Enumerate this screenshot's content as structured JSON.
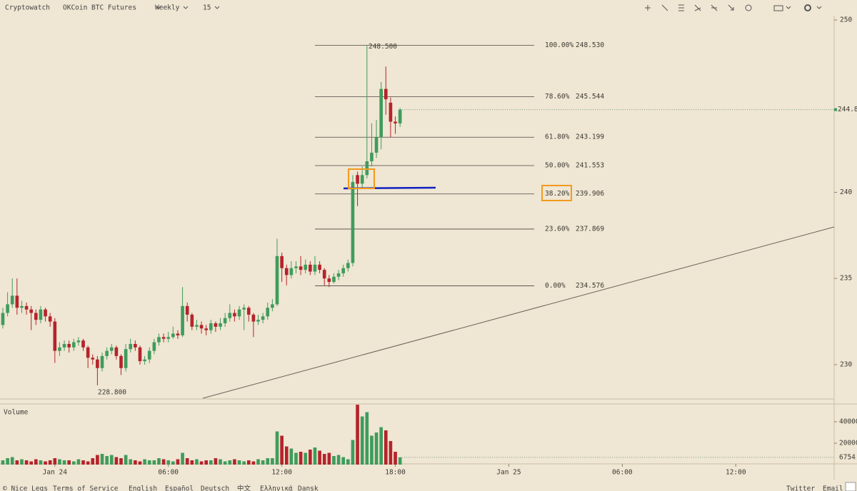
{
  "ui": {
    "brand": "Cryptowatch",
    "market": "OKCoin BTC Futures",
    "period": "Weekly",
    "interval": "15",
    "footer_left": [
      "© Nice Legs",
      "Terms of Service",
      "English",
      "Español",
      "Deutsch",
      "中文",
      "Ελληνικά",
      "Dansk"
    ],
    "footer_right": [
      "Twitter",
      "Email"
    ]
  },
  "chart_data": {
    "type": "candlestick",
    "x": [
      -2.75,
      -2.5,
      -2.25,
      -2,
      -1.75,
      -1.5,
      -1.25,
      -1,
      -0.75,
      -0.5,
      -0.25,
      0,
      0.25,
      0.5,
      0.75,
      1,
      1.25,
      1.5,
      1.75,
      2,
      2.25,
      2.5,
      2.75,
      3,
      3.25,
      3.5,
      3.75,
      4,
      4.25,
      4.5,
      4.75,
      5,
      5.25,
      5.5,
      5.75,
      6,
      6.25,
      6.5,
      6.75,
      7,
      7.25,
      7.5,
      7.75,
      8,
      8.25,
      8.5,
      8.75,
      9,
      9.25,
      9.5,
      9.75,
      10,
      10.25,
      10.5,
      10.75,
      11,
      11.25,
      11.5,
      11.75,
      12,
      12.25,
      12.5,
      12.75,
      13,
      13.25,
      13.5,
      13.75,
      14,
      14.25,
      14.5,
      14.75,
      15,
      15.25,
      15.5,
      15.75,
      16,
      16.25,
      16.5,
      16.75,
      17,
      17.25,
      17.5,
      17.75,
      18,
      18.25
    ],
    "open": [
      232.3,
      233.0,
      233.5,
      234.0,
      233.3,
      233.4,
      233.2,
      233.0,
      232.6,
      233.2,
      232.8,
      232.5,
      230.8,
      231.0,
      231.2,
      231.0,
      231.3,
      231.4,
      231.0,
      230.4,
      230.3,
      229.8,
      230.5,
      230.8,
      231.0,
      230.5,
      229.8,
      230.9,
      231.2,
      231.0,
      230.2,
      230.3,
      230.8,
      231.3,
      231.6,
      231.5,
      231.6,
      231.8,
      231.7,
      233.4,
      232.9,
      232.2,
      232.3,
      232.1,
      232.0,
      232.4,
      232.2,
      232.4,
      232.7,
      233.0,
      232.8,
      233.2,
      233.3,
      232.9,
      232.5,
      232.6,
      232.8,
      233.3,
      233.5,
      236.3,
      235.6,
      235.2,
      235.6,
      235.7,
      235.5,
      235.8,
      235.4,
      235.8,
      235.5,
      235.0,
      234.8,
      235.1,
      235.3,
      235.6,
      235.9,
      241.0,
      240.5,
      241.0,
      241.8,
      242.3,
      243.2,
      246.0,
      245.2,
      244.1,
      244.0
    ],
    "high": [
      233.3,
      234.2,
      235.0,
      235.0,
      233.7,
      233.6,
      233.4,
      233.2,
      233.4,
      233.3,
      233.0,
      232.7,
      231.3,
      231.4,
      231.4,
      231.5,
      231.6,
      231.5,
      231.1,
      230.6,
      230.5,
      230.7,
      231.0,
      231.2,
      231.1,
      230.6,
      231.2,
      231.5,
      231.4,
      231.1,
      230.5,
      231.0,
      231.5,
      231.8,
      231.8,
      231.9,
      232.2,
      232.0,
      234.5,
      233.6,
      233.0,
      232.6,
      232.5,
      232.3,
      232.6,
      232.5,
      232.7,
      233.0,
      233.5,
      233.2,
      233.4,
      233.5,
      233.4,
      233.0,
      232.9,
      233.0,
      233.6,
      233.8,
      237.3,
      236.5,
      235.8,
      236.0,
      236.0,
      236.3,
      236.1,
      236.0,
      236.3,
      236.0,
      235.6,
      235.2,
      235.3,
      235.5,
      235.8,
      236.1,
      241.0,
      241.2,
      241.5,
      248.5,
      244.0,
      244.2,
      246.4,
      247.3,
      245.5,
      244.4,
      244.9
    ],
    "low": [
      232.1,
      232.8,
      233.3,
      232.9,
      233.0,
      232.9,
      232.0,
      232.3,
      232.4,
      232.5,
      232.2,
      230.1,
      230.5,
      230.8,
      230.7,
      230.8,
      231.1,
      230.8,
      229.8,
      230.0,
      228.8,
      229.6,
      230.3,
      230.6,
      230.3,
      229.4,
      229.6,
      230.7,
      230.8,
      230.0,
      230.0,
      230.1,
      230.6,
      231.1,
      231.3,
      231.3,
      231.5,
      231.5,
      231.6,
      232.5,
      232.0,
      232.0,
      231.8,
      231.7,
      231.8,
      231.9,
      232.0,
      232.2,
      232.5,
      232.5,
      232.6,
      232.0,
      232.5,
      231.6,
      232.3,
      232.4,
      232.6,
      233.1,
      233.4,
      234.8,
      234.6,
      235.0,
      235.3,
      235.2,
      235.3,
      235.2,
      235.2,
      235.3,
      234.6,
      234.5,
      234.7,
      234.9,
      235.1,
      235.4,
      235.7,
      239.2,
      240.2,
      240.8,
      241.5,
      242.0,
      242.5,
      244.5,
      243.2,
      243.4,
      243.8
    ],
    "close": [
      233.0,
      233.5,
      234.0,
      233.3,
      233.4,
      233.2,
      233.0,
      232.6,
      233.2,
      232.8,
      232.5,
      230.8,
      231.0,
      231.2,
      231.0,
      231.3,
      231.4,
      231.0,
      230.4,
      230.3,
      229.8,
      230.5,
      230.8,
      231.0,
      230.5,
      229.8,
      230.9,
      231.2,
      231.0,
      230.2,
      230.3,
      230.8,
      231.3,
      231.6,
      231.5,
      231.6,
      231.8,
      231.7,
      233.4,
      232.9,
      232.2,
      232.3,
      232.1,
      232.0,
      232.4,
      232.2,
      232.4,
      232.7,
      233.0,
      232.8,
      233.2,
      233.3,
      232.9,
      232.5,
      232.6,
      232.8,
      233.3,
      233.5,
      236.3,
      235.6,
      235.2,
      235.6,
      235.7,
      235.5,
      235.8,
      235.4,
      235.8,
      235.5,
      235.0,
      234.8,
      235.1,
      235.3,
      235.6,
      235.9,
      240.6,
      240.5,
      241.0,
      241.8,
      242.3,
      243.2,
      246.0,
      245.4,
      244.1,
      244.0,
      244.8
    ],
    "volume": [
      4000,
      6000,
      7000,
      4000,
      5000,
      4000,
      3000,
      5000,
      4000,
      3000,
      4000,
      6000,
      5000,
      4000,
      4000,
      3000,
      5000,
      4000,
      3000,
      6000,
      9000,
      10000,
      8000,
      9000,
      7000,
      6000,
      9000,
      5000,
      4000,
      3000,
      5000,
      4000,
      4000,
      6000,
      5000,
      4000,
      3000,
      5000,
      11000,
      6000,
      4000,
      5000,
      3000,
      4000,
      4000,
      6000,
      5000,
      3000,
      4000,
      5000,
      4000,
      3000,
      4000,
      3000,
      5000,
      4000,
      6000,
      6000,
      31000,
      27000,
      17000,
      15000,
      11000,
      12000,
      11000,
      14000,
      16000,
      13000,
      10000,
      11000,
      8000,
      9000,
      7000,
      5000,
      23000,
      56000,
      45000,
      49000,
      27000,
      30000,
      35000,
      32000,
      22000,
      12000,
      6754
    ],
    "up_color": "#3f9c5c",
    "down_color": "#b5232b",
    "xlim": [
      -2.9,
      41.2
    ],
    "xticks": [
      {
        "value": 0,
        "label": "Jan 24"
      },
      {
        "value": 6,
        "label": "06:00"
      },
      {
        "value": 12,
        "label": "12:00"
      },
      {
        "value": 18,
        "label": "18:00"
      },
      {
        "value": 24,
        "label": "Jan 25"
      },
      {
        "value": 30,
        "label": "06:00"
      },
      {
        "value": 36,
        "label": "12:00"
      }
    ],
    "ylim": [
      228.05,
      250.25
    ],
    "yticks": [
      230,
      235,
      240,
      250
    ],
    "volume_label": "Volume",
    "volume_ylim": [
      0,
      56700
    ],
    "volume_yticks": [
      20000,
      40000
    ],
    "fib_levels": {
      "percents": [
        "100.00%",
        "78.60%",
        "61.80%",
        "50.00%",
        "38.20%",
        "23.60%",
        "0.00%"
      ],
      "values": [
        248.53,
        245.544,
        243.199,
        241.553,
        239.906,
        237.869,
        234.576
      ],
      "value_labels": [
        "248.530",
        "245.544",
        "243.199",
        "241.553",
        "239.906",
        "237.869",
        "234.576"
      ]
    },
    "annotations": [
      {
        "value": 248.5,
        "label": "248.500"
      },
      {
        "value": 228.8,
        "label": "228.800"
      }
    ]
  }
}
